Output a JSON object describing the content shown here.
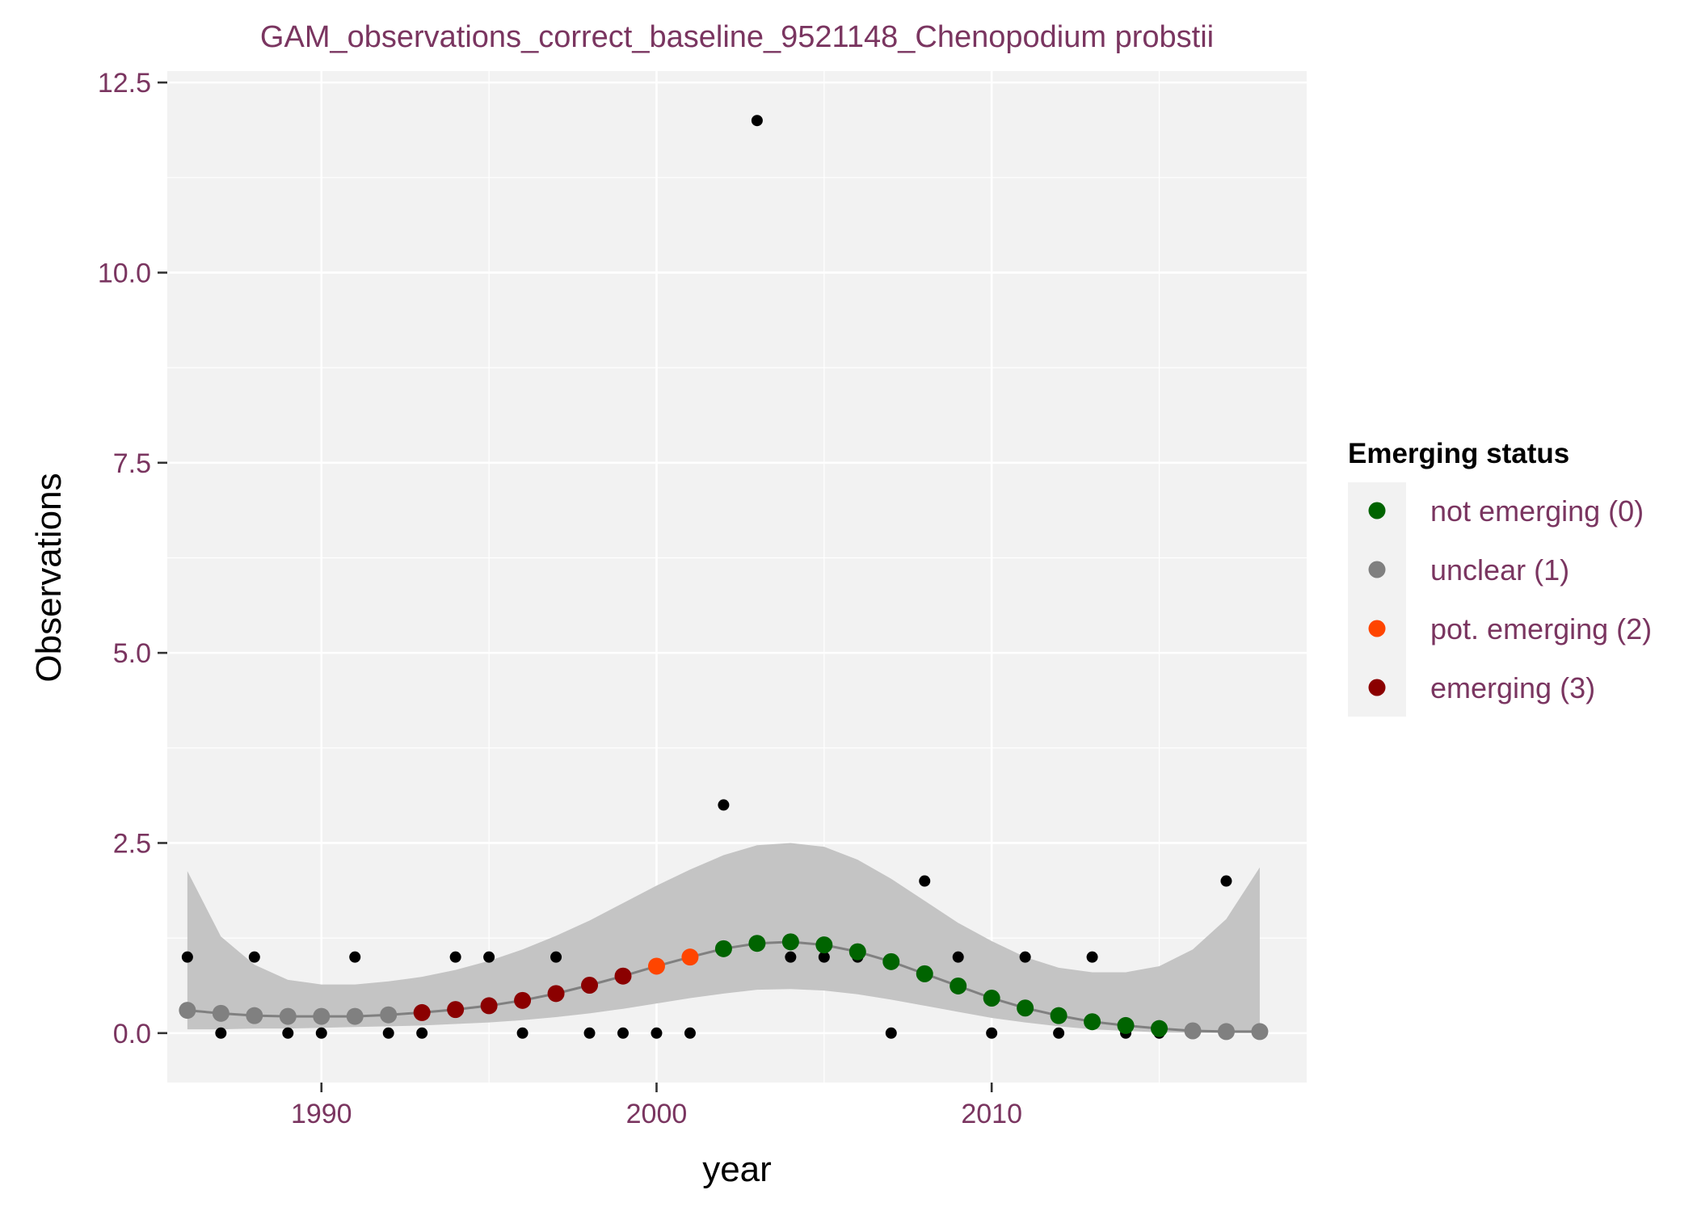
{
  "chart_data": {
    "type": "scatter",
    "title": "GAM_observations_correct_baseline_9521148_Chenopodium probstii",
    "xlabel": "year",
    "ylabel": "Observations",
    "xlim": [
      1985.4,
      2019.4
    ],
    "ylim": [
      -0.65,
      12.65
    ],
    "x_ticks": [
      1990,
      2000,
      2010
    ],
    "x_tick_labels": [
      "1990",
      "2000",
      "2010"
    ],
    "y_ticks": [
      0,
      2.5,
      5,
      7.5,
      10,
      12.5
    ],
    "y_tick_labels": [
      "0.0",
      "2.5",
      "5.0",
      "7.5",
      "10.0",
      "12.5"
    ],
    "grid": true,
    "legend": {
      "title": "Emerging status",
      "position": "right",
      "entries": [
        {
          "label": "not emerging (0)",
          "color": "#006400"
        },
        {
          "label": "unclear (1)",
          "color": "#808080"
        },
        {
          "label": "pot. emerging (2)",
          "color": "#ff4500"
        },
        {
          "label": "emerging (3)",
          "color": "#8b0000"
        }
      ]
    },
    "observations": {
      "color": "#000000",
      "points": [
        {
          "x": 1986,
          "y": 1
        },
        {
          "x": 1987,
          "y": 0
        },
        {
          "x": 1988,
          "y": 1
        },
        {
          "x": 1989,
          "y": 0
        },
        {
          "x": 1990,
          "y": 0
        },
        {
          "x": 1991,
          "y": 1
        },
        {
          "x": 1992,
          "y": 0
        },
        {
          "x": 1993,
          "y": 0
        },
        {
          "x": 1994,
          "y": 1
        },
        {
          "x": 1995,
          "y": 1
        },
        {
          "x": 1996,
          "y": 0
        },
        {
          "x": 1997,
          "y": 1
        },
        {
          "x": 1998,
          "y": 0
        },
        {
          "x": 1999,
          "y": 0
        },
        {
          "x": 2000,
          "y": 0
        },
        {
          "x": 2001,
          "y": 0
        },
        {
          "x": 2002,
          "y": 3
        },
        {
          "x": 2003,
          "y": 12
        },
        {
          "x": 2004,
          "y": 1
        },
        {
          "x": 2005,
          "y": 1
        },
        {
          "x": 2006,
          "y": 1
        },
        {
          "x": 2007,
          "y": 0
        },
        {
          "x": 2008,
          "y": 2
        },
        {
          "x": 2009,
          "y": 1
        },
        {
          "x": 2010,
          "y": 0
        },
        {
          "x": 2011,
          "y": 1
        },
        {
          "x": 2012,
          "y": 0
        },
        {
          "x": 2013,
          "y": 1
        },
        {
          "x": 2014,
          "y": 0
        },
        {
          "x": 2015,
          "y": 0
        },
        {
          "x": 2016,
          "y": 0
        },
        {
          "x": 2017,
          "y": 2
        },
        {
          "x": 2018,
          "y": 0
        }
      ]
    },
    "gam_fit": {
      "line_color": "#808080",
      "band_color": "#c4c4c4",
      "points": [
        {
          "x": 1986,
          "fit": 0.3,
          "lower": 0.05,
          "upper": 2.13,
          "status": 1
        },
        {
          "x": 1987,
          "fit": 0.26,
          "lower": 0.05,
          "upper": 1.27,
          "status": 1
        },
        {
          "x": 1988,
          "fit": 0.23,
          "lower": 0.06,
          "upper": 0.9,
          "status": 1
        },
        {
          "x": 1989,
          "fit": 0.22,
          "lower": 0.06,
          "upper": 0.7,
          "status": 1
        },
        {
          "x": 1990,
          "fit": 0.22,
          "lower": 0.07,
          "upper": 0.64,
          "status": 1
        },
        {
          "x": 1991,
          "fit": 0.22,
          "lower": 0.08,
          "upper": 0.64,
          "status": 1
        },
        {
          "x": 1992,
          "fit": 0.24,
          "lower": 0.09,
          "upper": 0.68,
          "status": 1
        },
        {
          "x": 1993,
          "fit": 0.27,
          "lower": 0.1,
          "upper": 0.74,
          "status": 3
        },
        {
          "x": 1994,
          "fit": 0.31,
          "lower": 0.12,
          "upper": 0.83,
          "status": 3
        },
        {
          "x": 1995,
          "fit": 0.36,
          "lower": 0.14,
          "upper": 0.95,
          "status": 3
        },
        {
          "x": 1996,
          "fit": 0.43,
          "lower": 0.17,
          "upper": 1.1,
          "status": 3
        },
        {
          "x": 1997,
          "fit": 0.52,
          "lower": 0.21,
          "upper": 1.28,
          "status": 3
        },
        {
          "x": 1998,
          "fit": 0.63,
          "lower": 0.26,
          "upper": 1.48,
          "status": 3
        },
        {
          "x": 1999,
          "fit": 0.75,
          "lower": 0.32,
          "upper": 1.71,
          "status": 3
        },
        {
          "x": 2000,
          "fit": 0.88,
          "lower": 0.39,
          "upper": 1.94,
          "status": 2
        },
        {
          "x": 2001,
          "fit": 1.0,
          "lower": 0.46,
          "upper": 2.15,
          "status": 2
        },
        {
          "x": 2002,
          "fit": 1.11,
          "lower": 0.52,
          "upper": 2.34,
          "status": 0
        },
        {
          "x": 2003,
          "fit": 1.18,
          "lower": 0.57,
          "upper": 2.47,
          "status": 0
        },
        {
          "x": 2004,
          "fit": 1.2,
          "lower": 0.58,
          "upper": 2.5,
          "status": 0
        },
        {
          "x": 2005,
          "fit": 1.16,
          "lower": 0.56,
          "upper": 2.45,
          "status": 0
        },
        {
          "x": 2006,
          "fit": 1.07,
          "lower": 0.51,
          "upper": 2.28,
          "status": 0
        },
        {
          "x": 2007,
          "fit": 0.94,
          "lower": 0.44,
          "upper": 2.03,
          "status": 0
        },
        {
          "x": 2008,
          "fit": 0.78,
          "lower": 0.36,
          "upper": 1.74,
          "status": 0
        },
        {
          "x": 2009,
          "fit": 0.62,
          "lower": 0.28,
          "upper": 1.45,
          "status": 0
        },
        {
          "x": 2010,
          "fit": 0.46,
          "lower": 0.2,
          "upper": 1.21,
          "status": 0
        },
        {
          "x": 2011,
          "fit": 0.33,
          "lower": 0.14,
          "upper": 1.0,
          "status": 0
        },
        {
          "x": 2012,
          "fit": 0.23,
          "lower": 0.09,
          "upper": 0.86,
          "status": 0
        },
        {
          "x": 2013,
          "fit": 0.15,
          "lower": 0.05,
          "upper": 0.8,
          "status": 0
        },
        {
          "x": 2014,
          "fit": 0.1,
          "lower": 0.03,
          "upper": 0.8,
          "status": 0
        },
        {
          "x": 2015,
          "fit": 0.06,
          "lower": 0.01,
          "upper": 0.88,
          "status": 0
        },
        {
          "x": 2016,
          "fit": 0.03,
          "lower": 0.005,
          "upper": 1.1,
          "status": 1
        },
        {
          "x": 2017,
          "fit": 0.02,
          "lower": 0.002,
          "upper": 1.5,
          "status": 1
        },
        {
          "x": 2018,
          "fit": 0.02,
          "lower": 0.001,
          "upper": 2.18,
          "status": 1
        }
      ]
    }
  }
}
